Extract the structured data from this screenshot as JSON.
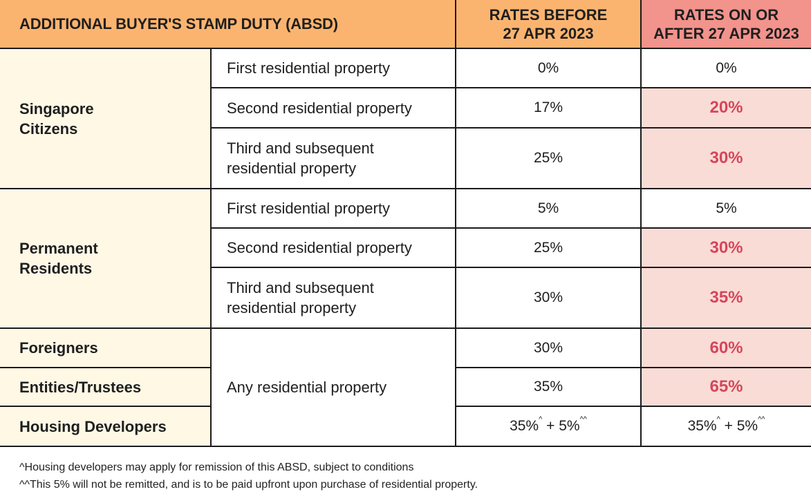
{
  "header": {
    "title": "ADDITIONAL BUYER'S STAMP DUTY (ABSD)",
    "before_line1": "RATES BEFORE",
    "before_line2": "27 APR 2023",
    "after_line1": "RATES ON OR",
    "after_line2": "AFTER 27 APR 2023"
  },
  "citizens": {
    "label_line1": "Singapore",
    "label_line2": "Citizens",
    "rows": [
      {
        "property": "First residential property",
        "before": "0%",
        "after": "0%"
      },
      {
        "property": "Second residential property",
        "before": "17%",
        "after": "20%"
      },
      {
        "property_line1": "Third and subsequent",
        "property_line2": "residential property",
        "before": "25%",
        "after": "30%"
      }
    ]
  },
  "permanent_residents": {
    "label_line1": "Permanent",
    "label_line2": "Residents",
    "rows": [
      {
        "property": "First residential property",
        "before": "5%",
        "after": "5%"
      },
      {
        "property": "Second residential property",
        "before": "25%",
        "after": "30%"
      },
      {
        "property_line1": "Third and subsequent",
        "property_line2": "residential property",
        "before": "30%",
        "after": "35%"
      }
    ]
  },
  "others": {
    "property": "Any residential property",
    "rows": [
      {
        "category": "Foreigners",
        "before": "30%",
        "after": "60%"
      },
      {
        "category": "Entities/Trustees",
        "before": "35%",
        "after": "65%"
      },
      {
        "category": "Housing Developers",
        "before": {
          "a": "35%",
          "a_mark": "^",
          "mid": " + 5%",
          "b_mark": "^^"
        },
        "after": {
          "a": "35%",
          "a_mark": "^",
          "mid": " + 5%",
          "b_mark": "^^"
        }
      }
    ]
  },
  "notes": [
    "^Housing developers may apply for remission of this ABSD, subject to conditions",
    "^^This 5% will not be remitted, and is to be paid upfront upon purchase of residential property."
  ],
  "colors": {
    "header_orange": "#fbb46f",
    "header_red": "#f2938c",
    "category_cream": "#fef8e5",
    "highlight_pink": "#f9dcd6",
    "highlight_text": "#d5465b"
  }
}
